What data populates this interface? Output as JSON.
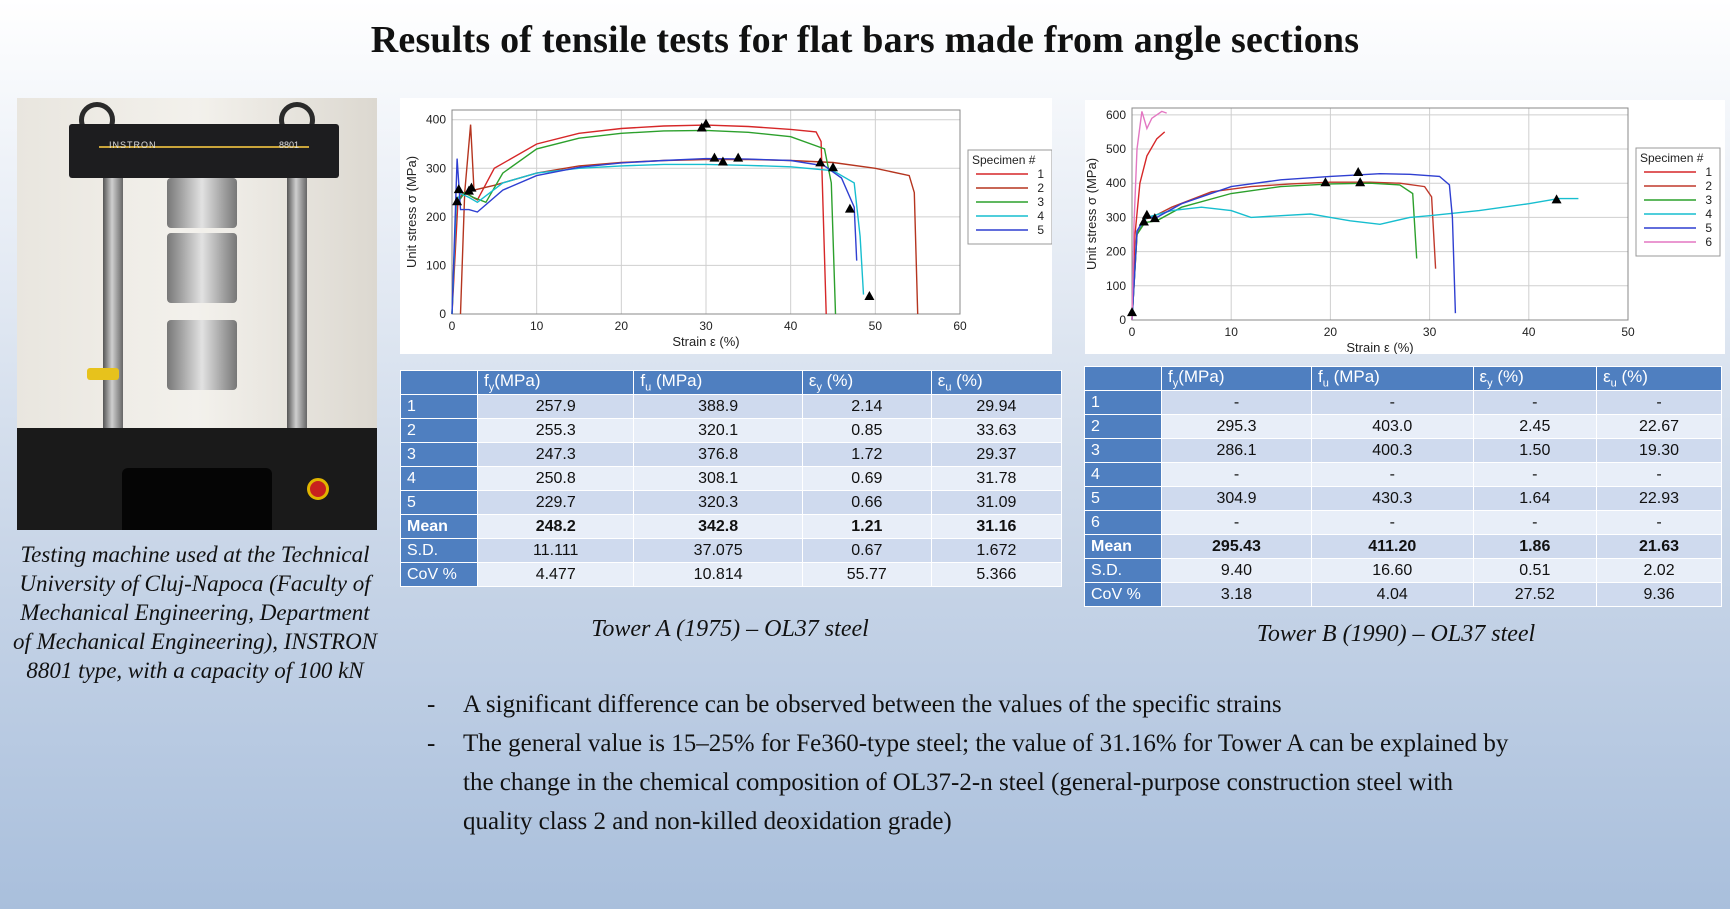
{
  "title": "Results of tensile tests for flat bars made from angle sections",
  "photo": {
    "brand": "INSTRON",
    "model": "8801"
  },
  "caption": "Testing machine used at the Technical University of Cluj-Napoca (Faculty of Mechanical Engineering, Department of Mechanical Engineering), INSTRON 8801 type, with a capacity of 100 kN",
  "chart_data": [
    {
      "type": "line",
      "xlabel": "Strain ε (%)",
      "ylabel": "Unit stress σ (MPa)",
      "xlim": [
        0,
        60
      ],
      "ylim": [
        0,
        420
      ],
      "xticks": [
        0,
        10,
        20,
        30,
        40,
        50,
        60
      ],
      "yticks": [
        0,
        100,
        200,
        300,
        400
      ],
      "grid": true,
      "legend_title": "Specimen #",
      "legend_position": "right",
      "series": [
        {
          "name": "1",
          "color": "#d62728",
          "points": [
            [
              0,
              0
            ],
            [
              0.7,
              230
            ],
            [
              1.3,
              250
            ],
            [
              2,
              245
            ],
            [
              3,
              235
            ],
            [
              5,
              300
            ],
            [
              10,
              350
            ],
            [
              15,
              372
            ],
            [
              20,
              382
            ],
            [
              25,
              387
            ],
            [
              30,
              389
            ],
            [
              35,
              386
            ],
            [
              40,
              380
            ],
            [
              43,
              375
            ],
            [
              43.6,
              355
            ],
            [
              44.2,
              0
            ]
          ]
        },
        {
          "name": "2",
          "color": "#b5351f",
          "points": [
            [
              1,
              0
            ],
            [
              1.5,
              250
            ],
            [
              2.2,
              390
            ],
            [
              2.6,
              255
            ],
            [
              5,
              265
            ],
            [
              10,
              290
            ],
            [
              15,
              305
            ],
            [
              20,
              312
            ],
            [
              25,
              316
            ],
            [
              30,
              318
            ],
            [
              35,
              318
            ],
            [
              40,
              316
            ],
            [
              45,
              312
            ],
            [
              50,
              300
            ],
            [
              54,
              285
            ],
            [
              54.6,
              250
            ],
            [
              55,
              0
            ]
          ]
        },
        {
          "name": "3",
          "color": "#2ca02c",
          "points": [
            [
              0,
              0
            ],
            [
              0.5,
              225
            ],
            [
              1.5,
              250
            ],
            [
              2.5,
              240
            ],
            [
              4,
              230
            ],
            [
              6,
              290
            ],
            [
              10,
              340
            ],
            [
              15,
              362
            ],
            [
              20,
              372
            ],
            [
              25,
              377
            ],
            [
              30,
              378
            ],
            [
              35,
              374
            ],
            [
              40,
              365
            ],
            [
              44,
              340
            ],
            [
              44.8,
              270
            ],
            [
              45.3,
              0
            ]
          ]
        },
        {
          "name": "4",
          "color": "#17becf",
          "points": [
            [
              0,
              0
            ],
            [
              0.5,
              230
            ],
            [
              1,
              248
            ],
            [
              2,
              240
            ],
            [
              3,
              230
            ],
            [
              6,
              270
            ],
            [
              10,
              290
            ],
            [
              15,
              300
            ],
            [
              20,
              305
            ],
            [
              25,
              308
            ],
            [
              30,
              308
            ],
            [
              35,
              306
            ],
            [
              40,
              303
            ],
            [
              45,
              295
            ],
            [
              47.5,
              270
            ],
            [
              48.2,
              160
            ],
            [
              48.6,
              40
            ]
          ]
        },
        {
          "name": "5",
          "color": "#2f3fd1",
          "points": [
            [
              0,
              0
            ],
            [
              0.6,
              320
            ],
            [
              1,
              215
            ],
            [
              2,
              215
            ],
            [
              3,
              210
            ],
            [
              6,
              255
            ],
            [
              10,
              285
            ],
            [
              15,
              302
            ],
            [
              20,
              311
            ],
            [
              25,
              316
            ],
            [
              30,
              320
            ],
            [
              35,
              319
            ],
            [
              40,
              316
            ],
            [
              44,
              305
            ],
            [
              46,
              280
            ],
            [
              47.5,
              220
            ],
            [
              47.8,
              110
            ]
          ]
        }
      ],
      "markers": [
        [
          0.6,
          230
        ],
        [
          0.8,
          255
        ],
        [
          2,
          252
        ],
        [
          2.3,
          258
        ],
        [
          29.5,
          382
        ],
        [
          30,
          390
        ],
        [
          31,
          320
        ],
        [
          32,
          312
        ],
        [
          33.8,
          320
        ],
        [
          43.5,
          310
        ],
        [
          45,
          300
        ],
        [
          47,
          215
        ],
        [
          49.3,
          35
        ]
      ]
    },
    {
      "type": "line",
      "xlabel": "Strain ε (%)",
      "ylabel": "Unit stress σ (MPa)",
      "xlim": [
        0,
        50
      ],
      "ylim": [
        0,
        620
      ],
      "xticks": [
        0,
        10,
        20,
        30,
        40,
        50
      ],
      "yticks": [
        0,
        100,
        200,
        300,
        400,
        500,
        600
      ],
      "grid": true,
      "legend_title": "Specimen #",
      "legend_position": "right",
      "series": [
        {
          "name": "1",
          "color": "#d62728",
          "points": [
            [
              0,
              0
            ],
            [
              0.3,
              250
            ],
            [
              0.8,
              400
            ],
            [
              1.5,
              480
            ],
            [
              2.5,
              530
            ],
            [
              3.3,
              550
            ]
          ]
        },
        {
          "name": "2",
          "color": "#c0392b",
          "points": [
            [
              0,
              0
            ],
            [
              0.5,
              250
            ],
            [
              1.3,
              295
            ],
            [
              2,
              300
            ],
            [
              4,
              330
            ],
            [
              8,
              375
            ],
            [
              12,
              390
            ],
            [
              16,
              398
            ],
            [
              20,
              403
            ],
            [
              24,
              403
            ],
            [
              27,
              400
            ],
            [
              29.5,
              390
            ],
            [
              30.2,
              360
            ],
            [
              30.6,
              150
            ]
          ]
        },
        {
          "name": "3",
          "color": "#2ca02c",
          "points": [
            [
              0,
              0
            ],
            [
              0.5,
              250
            ],
            [
              1.3,
              285
            ],
            [
              2.5,
              290
            ],
            [
              5,
              330
            ],
            [
              10,
              370
            ],
            [
              15,
              390
            ],
            [
              20,
              398
            ],
            [
              24,
              400
            ],
            [
              27,
              395
            ],
            [
              28.3,
              370
            ],
            [
              28.7,
              180
            ]
          ]
        },
        {
          "name": "4",
          "color": "#17becf",
          "points": [
            [
              0,
              0
            ],
            [
              0.5,
              260
            ],
            [
              1.5,
              300
            ],
            [
              4,
              320
            ],
            [
              7,
              330
            ],
            [
              10,
              320
            ],
            [
              12,
              300
            ],
            [
              15,
              305
            ],
            [
              18,
              310
            ],
            [
              20,
              300
            ],
            [
              22,
              290
            ],
            [
              25,
              280
            ],
            [
              28,
              300
            ],
            [
              30,
              305
            ],
            [
              35,
              320
            ],
            [
              40,
              340
            ],
            [
              43,
              355
            ],
            [
              45,
              355
            ]
          ]
        },
        {
          "name": "5",
          "color": "#2f3fd1",
          "points": [
            [
              0,
              0
            ],
            [
              0.5,
              260
            ],
            [
              1.3,
              300
            ],
            [
              2.5,
              300
            ],
            [
              5,
              340
            ],
            [
              10,
              390
            ],
            [
              15,
              410
            ],
            [
              20,
              420
            ],
            [
              25,
              428
            ],
            [
              28,
              426
            ],
            [
              31,
              420
            ],
            [
              32,
              395
            ],
            [
              32.3,
              300
            ],
            [
              32.6,
              20
            ]
          ]
        },
        {
          "name": "6",
          "color": "#e377c2",
          "points": [
            [
              0,
              0
            ],
            [
              0.2,
              280
            ],
            [
              0.5,
              500
            ],
            [
              1,
              610
            ],
            [
              1.5,
              560
            ],
            [
              2,
              590
            ],
            [
              3,
              610
            ],
            [
              3.5,
              605
            ]
          ]
        }
      ],
      "markers": [
        [
          0,
          20
        ],
        [
          1.2,
          285
        ],
        [
          1.5,
          305
        ],
        [
          2.3,
          295
        ],
        [
          19.5,
          400
        ],
        [
          22.8,
          430
        ],
        [
          23,
          400
        ],
        [
          42.8,
          350
        ]
      ]
    }
  ],
  "table_a": {
    "headers": [
      "",
      "fy(MPa)",
      "fu (MPa)",
      "εy (%)",
      "εu (%)"
    ],
    "rows": [
      {
        "label": "1",
        "cells": [
          "257.9",
          "388.9",
          "2.14",
          "29.94"
        ]
      },
      {
        "label": "2",
        "cells": [
          "255.3",
          "320.1",
          "0.85",
          "33.63"
        ]
      },
      {
        "label": "3",
        "cells": [
          "247.3",
          "376.8",
          "1.72",
          "29.37"
        ]
      },
      {
        "label": "4",
        "cells": [
          "250.8",
          "308.1",
          "0.69",
          "31.78"
        ]
      },
      {
        "label": "5",
        "cells": [
          "229.7",
          "320.3",
          "0.66",
          "31.09"
        ]
      },
      {
        "label": "Mean",
        "cells": [
          "248.2",
          "342.8",
          "1.21",
          "31.16"
        ],
        "bold": true
      },
      {
        "label": "S.D.",
        "cells": [
          "11.111",
          "37.075",
          "0.67",
          "1.672"
        ]
      },
      {
        "label": "CoV %",
        "cells": [
          "4.477",
          "10.814",
          "55.77",
          "5.366"
        ]
      }
    ]
  },
  "table_b": {
    "headers": [
      "",
      "fy(MPa)",
      "fu (MPa)",
      "εy (%)",
      "εu (%)"
    ],
    "rows": [
      {
        "label": "1",
        "cells": [
          "-",
          "-",
          "-",
          "-"
        ]
      },
      {
        "label": "2",
        "cells": [
          "295.3",
          "403.0",
          "2.45",
          "22.67"
        ]
      },
      {
        "label": "3",
        "cells": [
          "286.1",
          "400.3",
          "1.50",
          "19.30"
        ]
      },
      {
        "label": "4",
        "cells": [
          "-",
          "-",
          "-",
          "-"
        ]
      },
      {
        "label": "5",
        "cells": [
          "304.9",
          "430.3",
          "1.64",
          "22.93"
        ]
      },
      {
        "label": "6",
        "cells": [
          "-",
          "-",
          "-",
          "-"
        ]
      },
      {
        "label": "Mean",
        "cells": [
          "295.43",
          "411.20",
          "1.86",
          "21.63"
        ],
        "bold": true
      },
      {
        "label": "S.D.",
        "cells": [
          "9.40",
          "16.60",
          "0.51",
          "2.02"
        ]
      },
      {
        "label": "CoV %",
        "cells": [
          "3.18",
          "4.04",
          "27.52",
          "9.36"
        ]
      }
    ]
  },
  "caption_a": "Tower A (1975) – OL37 steel",
  "caption_b": "Tower B (1990) – OL37 steel",
  "bullets": [
    "A significant difference can be observed between the values of the specific strains",
    "The general value is 15–25% for Fe360-type steel; the value of 31.16% for Tower A can be explained by the change in the chemical composition of OL37-2-n steel (general-purpose construction steel with quality class 2 and non-killed deoxidation grade)"
  ]
}
